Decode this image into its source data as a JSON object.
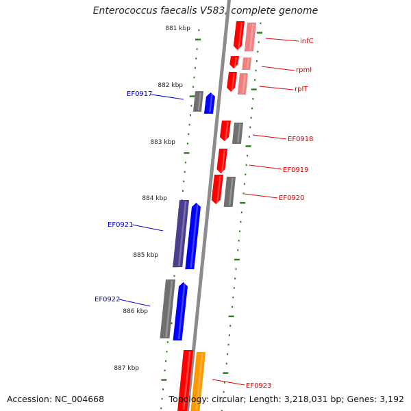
{
  "title": "Enterococcus faecalis V583, complete genome",
  "footer": {
    "accession": "Accession: NC_004668",
    "topology": "Topology: circular; Length: 3,218,031 bp; Genes: 3,192"
  },
  "ticks": [
    "881 kbp",
    "882 kbp",
    "883 kbp",
    "884 kbp",
    "885 kbp",
    "886 kbp",
    "887 kbp"
  ],
  "genes_right": [
    "infC",
    "rpmI",
    "rplT",
    "EF0918",
    "EF0919",
    "EF0920",
    "EF0923"
  ],
  "genes_left": [
    "EF0917",
    "EF0921",
    "EF0922"
  ],
  "colors": {
    "backbone": "#8c8c8c",
    "tick": "#2e7d1f",
    "red": "#ff0000",
    "pink": "#f08080",
    "gray": "#707070",
    "blue": "#0000ff",
    "purple": "#4a3f8f",
    "orange": "#ff9900",
    "label_red": "#dd0000",
    "label_blue": "#0000cc"
  }
}
